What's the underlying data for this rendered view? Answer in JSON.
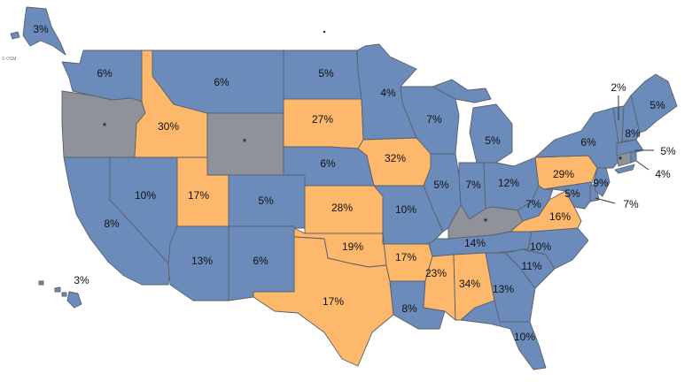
{
  "colors": {
    "blue": "#6b8cba",
    "orange": "#fdb86b",
    "gray": "#8f9399"
  },
  "credit": "© OSM",
  "states": {
    "AK": {
      "value": "3%",
      "cat": "blue"
    },
    "HI": {
      "value": "3%",
      "cat": "blue"
    },
    "WA": {
      "value": "6%",
      "cat": "blue"
    },
    "OR": {
      "value": "*",
      "cat": "gray"
    },
    "CA": {
      "value": "8%",
      "cat": "blue"
    },
    "NV": {
      "value": "10%",
      "cat": "blue"
    },
    "ID": {
      "value": "30%",
      "cat": "orange"
    },
    "MT": {
      "value": "6%",
      "cat": "blue"
    },
    "WY": {
      "value": "*",
      "cat": "gray"
    },
    "UT": {
      "value": "17%",
      "cat": "orange"
    },
    "CO": {
      "value": "5%",
      "cat": "blue"
    },
    "AZ": {
      "value": "13%",
      "cat": "blue"
    },
    "NM": {
      "value": "6%",
      "cat": "blue"
    },
    "ND": {
      "value": "5%",
      "cat": "blue"
    },
    "SD": {
      "value": "27%",
      "cat": "orange"
    },
    "NE": {
      "value": "6%",
      "cat": "blue"
    },
    "KS": {
      "value": "28%",
      "cat": "orange"
    },
    "OK": {
      "value": "19%",
      "cat": "orange"
    },
    "TX": {
      "value": "17%",
      "cat": "orange"
    },
    "MN": {
      "value": "4%",
      "cat": "blue"
    },
    "IA": {
      "value": "32%",
      "cat": "orange"
    },
    "MO": {
      "value": "10%",
      "cat": "blue"
    },
    "AR": {
      "value": "17%",
      "cat": "orange"
    },
    "LA": {
      "value": "8%",
      "cat": "blue"
    },
    "WI": {
      "value": "7%",
      "cat": "blue"
    },
    "IL": {
      "value": "5%",
      "cat": "blue"
    },
    "MI": {
      "value": "5%",
      "cat": "blue"
    },
    "IN": {
      "value": "7%",
      "cat": "blue"
    },
    "OH": {
      "value": "12%",
      "cat": "blue"
    },
    "KY": {
      "value": "*",
      "cat": "gray"
    },
    "TN": {
      "value": "14%",
      "cat": "blue"
    },
    "MS": {
      "value": "23%",
      "cat": "orange"
    },
    "AL": {
      "value": "34%",
      "cat": "orange"
    },
    "GA": {
      "value": "13%",
      "cat": "blue"
    },
    "FL": {
      "value": "10%",
      "cat": "blue"
    },
    "SC": {
      "value": "11%",
      "cat": "blue"
    },
    "NC": {
      "value": "10%",
      "cat": "blue"
    },
    "VA": {
      "value": "16%",
      "cat": "orange"
    },
    "WV": {
      "value": "7%",
      "cat": "blue"
    },
    "PA": {
      "value": "29%",
      "cat": "orange"
    },
    "NY": {
      "value": "6%",
      "cat": "blue"
    },
    "MD": {
      "value": "5%",
      "cat": "blue"
    },
    "DE": {
      "value": "7%",
      "cat": "blue"
    },
    "NJ": {
      "value": "9%",
      "cat": "blue"
    },
    "CT": {
      "value": "*",
      "cat": "gray"
    },
    "RI": {
      "value": "4%",
      "cat": "blue"
    },
    "MA": {
      "value": "5%",
      "cat": "blue"
    },
    "VT": {
      "value": "2%",
      "cat": "blue"
    },
    "NH": {
      "value": "8%",
      "cat": "blue"
    },
    "ME": {
      "value": "5%",
      "cat": "blue"
    }
  }
}
